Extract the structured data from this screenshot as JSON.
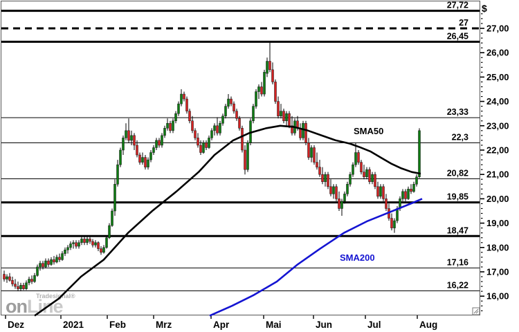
{
  "currency_symbol": "$",
  "watermark": {
    "brand": "Tradesignal®",
    "big_left": "on",
    "big_right": "Line"
  },
  "colors": {
    "up_candle": "#0e7c12",
    "down_candle": "#d42222",
    "wick": "#000000",
    "sma50": "#000000",
    "sma200": "#1414d2",
    "level_line": "#000000",
    "axis_text": "#000000",
    "plot_border": "#555555",
    "background": "#ffffff"
  },
  "chart_data": {
    "type": "candlestick",
    "title": "",
    "ylabel_unit": "$",
    "y_axis": {
      "min_visible": 15.2,
      "max_visible": 28.0,
      "major_ticks": [
        27,
        26,
        25,
        24,
        23,
        22,
        21,
        20,
        19,
        18,
        17,
        16
      ],
      "major_tick_labels": [
        "27,00",
        "26,00",
        "25,00",
        "24,00",
        "23,00",
        "22,00",
        "21,00",
        "20,00",
        "19,00",
        "18,00",
        "17,00",
        "16,00"
      ],
      "minor_tick_step": 0.2
    },
    "x_axis": {
      "tick_labels": [
        "Dez",
        "2021",
        "Feb",
        "Mrz",
        "Apr",
        "Mai",
        "Jun",
        "Jul",
        "Aug"
      ],
      "tick_x": [
        8,
        88,
        155,
        222,
        305,
        381,
        453,
        528,
        603
      ]
    },
    "horizontal_levels": [
      {
        "price": 27.72,
        "label": "27,72",
        "weight": "thick",
        "style": "solid"
      },
      {
        "price": 27.0,
        "label": "27",
        "weight": "thick",
        "style": "dashed"
      },
      {
        "price": 26.45,
        "label": "26,45",
        "weight": "thick",
        "style": "solid"
      },
      {
        "price": 23.33,
        "label": "23,33",
        "weight": "thin",
        "style": "solid"
      },
      {
        "price": 22.3,
        "label": "22,3",
        "weight": "thin",
        "style": "solid"
      },
      {
        "price": 20.82,
        "label": "20,82",
        "weight": "thin",
        "style": "solid"
      },
      {
        "price": 19.85,
        "label": "19,85",
        "weight": "thick",
        "style": "solid"
      },
      {
        "price": 18.47,
        "label": "18,47",
        "weight": "thick",
        "style": "solid"
      },
      {
        "price": 17.16,
        "label": "17,16",
        "weight": "thin",
        "style": "solid"
      },
      {
        "price": 16.22,
        "label": "16,22",
        "weight": "thin",
        "style": "solid"
      }
    ],
    "sma50": {
      "label": "SMA50",
      "points": [
        [
          50,
          15.2
        ],
        [
          85,
          15.9
        ],
        [
          117,
          16.8
        ],
        [
          150,
          17.5
        ],
        [
          185,
          18.6
        ],
        [
          220,
          19.5
        ],
        [
          255,
          20.3
        ],
        [
          287,
          21.1
        ],
        [
          310,
          21.8
        ],
        [
          337,
          22.4
        ],
        [
          360,
          22.7
        ],
        [
          385,
          22.9
        ],
        [
          405,
          23.0
        ],
        [
          425,
          22.95
        ],
        [
          445,
          22.8
        ],
        [
          465,
          22.6
        ],
        [
          485,
          22.4
        ],
        [
          505,
          22.27
        ],
        [
          520,
          22.12
        ],
        [
          535,
          21.95
        ],
        [
          550,
          21.7
        ],
        [
          565,
          21.45
        ],
        [
          580,
          21.25
        ],
        [
          595,
          21.1
        ],
        [
          608,
          21.03
        ]
      ]
    },
    "sma200": {
      "label": "SMA200",
      "points": [
        [
          303,
          15.2
        ],
        [
          335,
          15.6
        ],
        [
          367,
          16.05
        ],
        [
          400,
          16.6
        ],
        [
          430,
          17.3
        ],
        [
          462,
          17.94
        ],
        [
          497,
          18.6
        ],
        [
          530,
          19.07
        ],
        [
          563,
          19.45
        ],
        [
          597,
          19.84
        ],
        [
          610,
          20.0
        ]
      ]
    },
    "candles_x_start": 6,
    "candles_x_step": 4,
    "candles_ohlc": [
      [
        16.9,
        17.05,
        16.6,
        16.7
      ],
      [
        16.7,
        16.9,
        16.55,
        16.8
      ],
      [
        16.8,
        16.95,
        16.6,
        16.65
      ],
      [
        16.65,
        16.8,
        16.4,
        16.5
      ],
      [
        16.5,
        16.7,
        16.3,
        16.4
      ],
      [
        16.4,
        16.6,
        16.2,
        16.3
      ],
      [
        16.3,
        16.55,
        16.2,
        16.45
      ],
      [
        16.45,
        16.55,
        16.25,
        16.3
      ],
      [
        16.3,
        16.65,
        16.25,
        16.55
      ],
      [
        16.55,
        16.8,
        16.45,
        16.7
      ],
      [
        16.7,
        16.85,
        16.5,
        16.6
      ],
      [
        16.6,
        16.95,
        16.55,
        16.85
      ],
      [
        16.85,
        17.3,
        16.8,
        17.2
      ],
      [
        17.2,
        17.45,
        17.05,
        17.35
      ],
      [
        17.35,
        17.45,
        17.1,
        17.2
      ],
      [
        17.2,
        17.55,
        17.15,
        17.45
      ],
      [
        17.45,
        17.55,
        17.2,
        17.3
      ],
      [
        17.3,
        17.6,
        17.25,
        17.5
      ],
      [
        17.5,
        17.65,
        17.3,
        17.4
      ],
      [
        17.4,
        17.7,
        17.35,
        17.6
      ],
      [
        17.6,
        17.75,
        17.4,
        17.5
      ],
      [
        17.5,
        17.85,
        17.45,
        17.75
      ],
      [
        17.75,
        18.0,
        17.65,
        17.9
      ],
      [
        17.9,
        18.1,
        17.75,
        18.0
      ],
      [
        18.0,
        18.25,
        17.9,
        18.15
      ],
      [
        18.15,
        18.3,
        17.95,
        18.2
      ],
      [
        18.2,
        18.3,
        17.95,
        18.05
      ],
      [
        18.05,
        18.3,
        17.95,
        18.2
      ],
      [
        18.2,
        18.45,
        18.1,
        18.35
      ],
      [
        18.35,
        18.45,
        18.1,
        18.2
      ],
      [
        18.2,
        18.45,
        18.1,
        18.35
      ],
      [
        18.35,
        18.45,
        18.15,
        18.25
      ],
      [
        18.25,
        18.35,
        18.0,
        18.1
      ],
      [
        18.1,
        18.3,
        18.0,
        18.2
      ],
      [
        18.2,
        18.25,
        17.85,
        17.95
      ],
      [
        17.95,
        18.05,
        17.7,
        17.8
      ],
      [
        17.8,
        18.1,
        17.75,
        18.0
      ],
      [
        18.0,
        18.5,
        17.95,
        18.4
      ],
      [
        18.4,
        19.0,
        18.35,
        18.9
      ],
      [
        18.9,
        19.6,
        18.85,
        19.5
      ],
      [
        19.5,
        20.8,
        19.3,
        20.6
      ],
      [
        20.6,
        21.6,
        20.5,
        21.4
      ],
      [
        21.4,
        22.1,
        21.3,
        22.0
      ],
      [
        22.0,
        22.6,
        21.8,
        22.5
      ],
      [
        22.5,
        23.1,
        22.4,
        22.8
      ],
      [
        22.8,
        23.3,
        22.3,
        22.4
      ],
      [
        22.4,
        22.8,
        22.2,
        22.6
      ],
      [
        22.6,
        22.7,
        22.0,
        22.2
      ],
      [
        22.2,
        22.4,
        21.7,
        21.8
      ],
      [
        21.8,
        21.9,
        21.4,
        21.5
      ],
      [
        21.5,
        21.9,
        21.4,
        21.7
      ],
      [
        21.7,
        21.8,
        21.2,
        21.3
      ],
      [
        21.3,
        21.7,
        21.2,
        21.6
      ],
      [
        21.6,
        22.0,
        21.5,
        21.9
      ],
      [
        21.9,
        22.2,
        21.8,
        22.1
      ],
      [
        22.1,
        22.5,
        22.0,
        22.4
      ],
      [
        22.4,
        22.5,
        22.1,
        22.2
      ],
      [
        22.2,
        22.7,
        22.1,
        22.6
      ],
      [
        22.6,
        23.0,
        22.5,
        22.9
      ],
      [
        22.9,
        23.3,
        22.8,
        23.1
      ],
      [
        23.1,
        23.2,
        22.7,
        22.8
      ],
      [
        22.8,
        23.3,
        22.7,
        23.2
      ],
      [
        23.2,
        23.6,
        23.1,
        23.5
      ],
      [
        23.5,
        24.0,
        23.4,
        23.9
      ],
      [
        23.9,
        24.5,
        23.8,
        24.3
      ],
      [
        24.3,
        24.4,
        24.0,
        24.1
      ],
      [
        24.1,
        24.2,
        23.5,
        23.6
      ],
      [
        23.6,
        23.7,
        23.1,
        23.2
      ],
      [
        23.2,
        23.4,
        22.7,
        22.8
      ],
      [
        22.8,
        22.9,
        22.4,
        22.5
      ],
      [
        22.5,
        22.7,
        22.1,
        22.2
      ],
      [
        22.2,
        22.4,
        21.8,
        21.9
      ],
      [
        21.9,
        22.4,
        21.85,
        22.3
      ],
      [
        22.3,
        22.4,
        22.0,
        22.1
      ],
      [
        22.1,
        22.6,
        22.05,
        22.5
      ],
      [
        22.5,
        22.9,
        22.4,
        22.8
      ],
      [
        22.8,
        23.1,
        22.6,
        23.0
      ],
      [
        23.0,
        23.35,
        22.6,
        22.7
      ],
      [
        22.7,
        23.2,
        22.6,
        23.1
      ],
      [
        23.1,
        23.5,
        23.0,
        23.4
      ],
      [
        23.4,
        23.9,
        23.3,
        23.8
      ],
      [
        23.8,
        24.3,
        23.7,
        24.1
      ],
      [
        24.1,
        24.2,
        23.8,
        23.9
      ],
      [
        23.9,
        24.0,
        23.5,
        23.6
      ],
      [
        23.6,
        23.7,
        23.2,
        23.3
      ],
      [
        23.3,
        23.4,
        22.8,
        22.9
      ],
      [
        22.9,
        23.0,
        21.9,
        22.0
      ],
      [
        22.0,
        22.2,
        21.0,
        21.2
      ],
      [
        21.2,
        22.4,
        21.1,
        22.3
      ],
      [
        22.3,
        23.3,
        22.2,
        23.2
      ],
      [
        23.2,
        23.9,
        23.1,
        23.8
      ],
      [
        23.8,
        24.5,
        23.7,
        24.4
      ],
      [
        24.4,
        24.7,
        24.1,
        24.6
      ],
      [
        24.6,
        24.8,
        24.2,
        24.3
      ],
      [
        24.3,
        25.3,
        24.2,
        25.2
      ],
      [
        25.15,
        25.8,
        25.0,
        25.65
      ],
      [
        25.65,
        26.45,
        25.2,
        25.3
      ],
      [
        25.3,
        25.6,
        24.7,
        24.8
      ],
      [
        24.8,
        24.9,
        23.9,
        24.0
      ],
      [
        24.0,
        24.2,
        23.3,
        23.4
      ],
      [
        23.4,
        23.9,
        23.3,
        23.6
      ],
      [
        23.6,
        23.7,
        23.1,
        23.2
      ],
      [
        23.2,
        23.6,
        23.0,
        23.5
      ],
      [
        23.5,
        23.6,
        22.9,
        23.0
      ],
      [
        23.0,
        23.4,
        22.6,
        22.7
      ],
      [
        22.7,
        23.3,
        22.6,
        23.2
      ],
      [
        23.2,
        23.4,
        22.8,
        22.9
      ],
      [
        22.9,
        23.1,
        22.4,
        22.5
      ],
      [
        22.5,
        23.2,
        22.4,
        23.1
      ],
      [
        23.1,
        23.2,
        22.2,
        22.3
      ],
      [
        22.3,
        22.5,
        21.6,
        21.7
      ],
      [
        21.7,
        22.2,
        21.5,
        22.1
      ],
      [
        22.1,
        22.2,
        21.4,
        21.5
      ],
      [
        21.5,
        21.9,
        21.2,
        21.3
      ],
      [
        21.3,
        21.6,
        20.9,
        21.0
      ],
      [
        21.0,
        21.3,
        20.6,
        20.7
      ],
      [
        20.7,
        21.1,
        20.5,
        21.0
      ],
      [
        21.0,
        21.1,
        20.4,
        20.5
      ],
      [
        20.5,
        20.8,
        20.1,
        20.2
      ],
      [
        20.2,
        20.6,
        20.0,
        20.5
      ],
      [
        20.5,
        20.6,
        19.9,
        20.0
      ],
      [
        20.0,
        20.3,
        19.5,
        19.6
      ],
      [
        19.6,
        20.0,
        19.3,
        19.9
      ],
      [
        19.9,
        20.3,
        19.8,
        20.2
      ],
      [
        20.2,
        20.7,
        20.1,
        20.6
      ],
      [
        20.6,
        21.1,
        20.5,
        21.0
      ],
      [
        21.0,
        21.5,
        20.9,
        21.4
      ],
      [
        21.4,
        22.3,
        21.3,
        21.9
      ],
      [
        21.9,
        22.0,
        21.4,
        21.5
      ],
      [
        21.5,
        21.6,
        21.0,
        21.1
      ],
      [
        21.1,
        21.4,
        20.8,
        20.9
      ],
      [
        20.9,
        21.3,
        20.8,
        21.2
      ],
      [
        21.2,
        21.3,
        20.6,
        20.7
      ],
      [
        20.7,
        21.1,
        20.6,
        21.0
      ],
      [
        21.0,
        21.1,
        20.4,
        20.5
      ],
      [
        20.5,
        20.7,
        20.0,
        20.1
      ],
      [
        20.1,
        20.6,
        20.0,
        20.5
      ],
      [
        20.5,
        20.6,
        19.9,
        20.0
      ],
      [
        20.0,
        20.2,
        19.5,
        19.6
      ],
      [
        19.6,
        19.8,
        19.1,
        19.2
      ],
      [
        19.2,
        19.4,
        18.7,
        18.8
      ],
      [
        18.8,
        19.2,
        18.6,
        19.1
      ],
      [
        19.1,
        19.7,
        19.0,
        19.6
      ],
      [
        19.6,
        20.1,
        19.5,
        20.0
      ],
      [
        20.0,
        20.4,
        19.9,
        20.3
      ],
      [
        20.3,
        20.4,
        19.9,
        20.0
      ],
      [
        20.0,
        20.5,
        19.95,
        20.4
      ],
      [
        20.4,
        20.6,
        20.2,
        20.3
      ],
      [
        20.3,
        20.7,
        20.25,
        20.6
      ],
      [
        20.6,
        21.0,
        20.5,
        20.9
      ],
      [
        20.9,
        22.9,
        20.85,
        22.8
      ]
    ]
  }
}
